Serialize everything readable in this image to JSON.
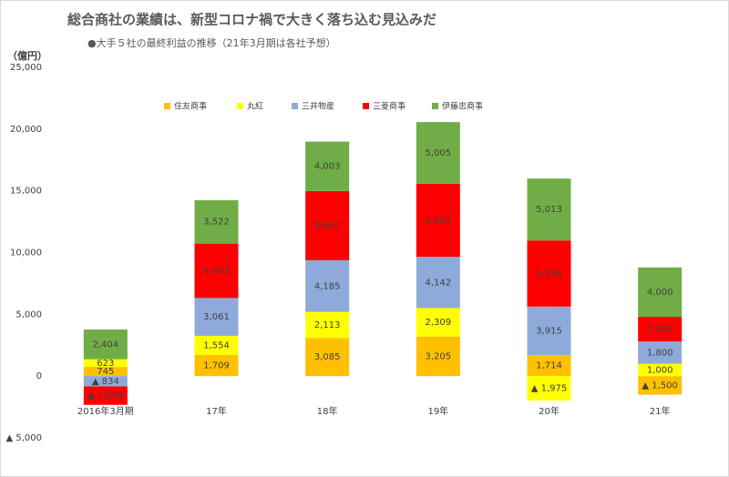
{
  "chart_data": {
    "type": "stacked-bar",
    "title": "総合商社の業績は、新型コロナ禍で大きく落ち込む見込みだ",
    "subtitle": "●大手５社の最終利益の推移（21年3月期は各社予想）",
    "y_label": "（億円）",
    "categories": [
      "2016年3月期",
      "17年",
      "18年",
      "19年",
      "20年",
      "21年"
    ],
    "ylim": [
      -5000,
      25000
    ],
    "yticks": [
      {
        "value": -5000,
        "label": "▲ 5,000"
      },
      0,
      {
        "value": 5000,
        "label": "5,000"
      },
      {
        "value": 10000,
        "label": "10,000"
      },
      {
        "value": 15000,
        "label": "15,000"
      },
      {
        "value": 20000,
        "label": "20,000"
      },
      {
        "value": 25000,
        "label": "25,000"
      }
    ],
    "grid": false,
    "series": [
      {
        "name": "住友商事",
        "color": "#ffc000",
        "values": [
          745,
          1709,
          3085,
          3205,
          1714,
          -1500
        ],
        "value_labels": [
          "745",
          "1,709",
          "3,085",
          "3,205",
          "1,714",
          "▲ 1,500"
        ]
      },
      {
        "name": "丸紅",
        "color": "#ffff00",
        "values": [
          623,
          1554,
          2113,
          2309,
          -1975,
          1000
        ],
        "value_labels": [
          "623",
          "1,554",
          "2,113",
          "2,309",
          "▲ 1,975",
          "1,000"
        ]
      },
      {
        "name": "三井物産",
        "color": "#8eaadb",
        "values": [
          -834,
          3061,
          4185,
          4142,
          3915,
          1800
        ],
        "value_labels": [
          "▲ 834",
          "3,061",
          "4,185",
          "4,142",
          "3,915",
          "1,800"
        ]
      },
      {
        "name": "三菱商事",
        "color": "#ff0000",
        "values": [
          -1494,
          4403,
          5602,
          5907,
          5354,
          2000
        ],
        "value_labels": [
          "▲ 1,494",
          "4,403",
          "5,602",
          "5,907",
          "5,354",
          "2,000"
        ]
      },
      {
        "name": "伊藤忠商事",
        "color": "#70ad47",
        "values": [
          2404,
          3522,
          4003,
          5005,
          5013,
          4000
        ],
        "value_labels": [
          "2,404",
          "3,522",
          "4,003",
          "5,005",
          "5,013",
          "4,000"
        ]
      }
    ]
  }
}
